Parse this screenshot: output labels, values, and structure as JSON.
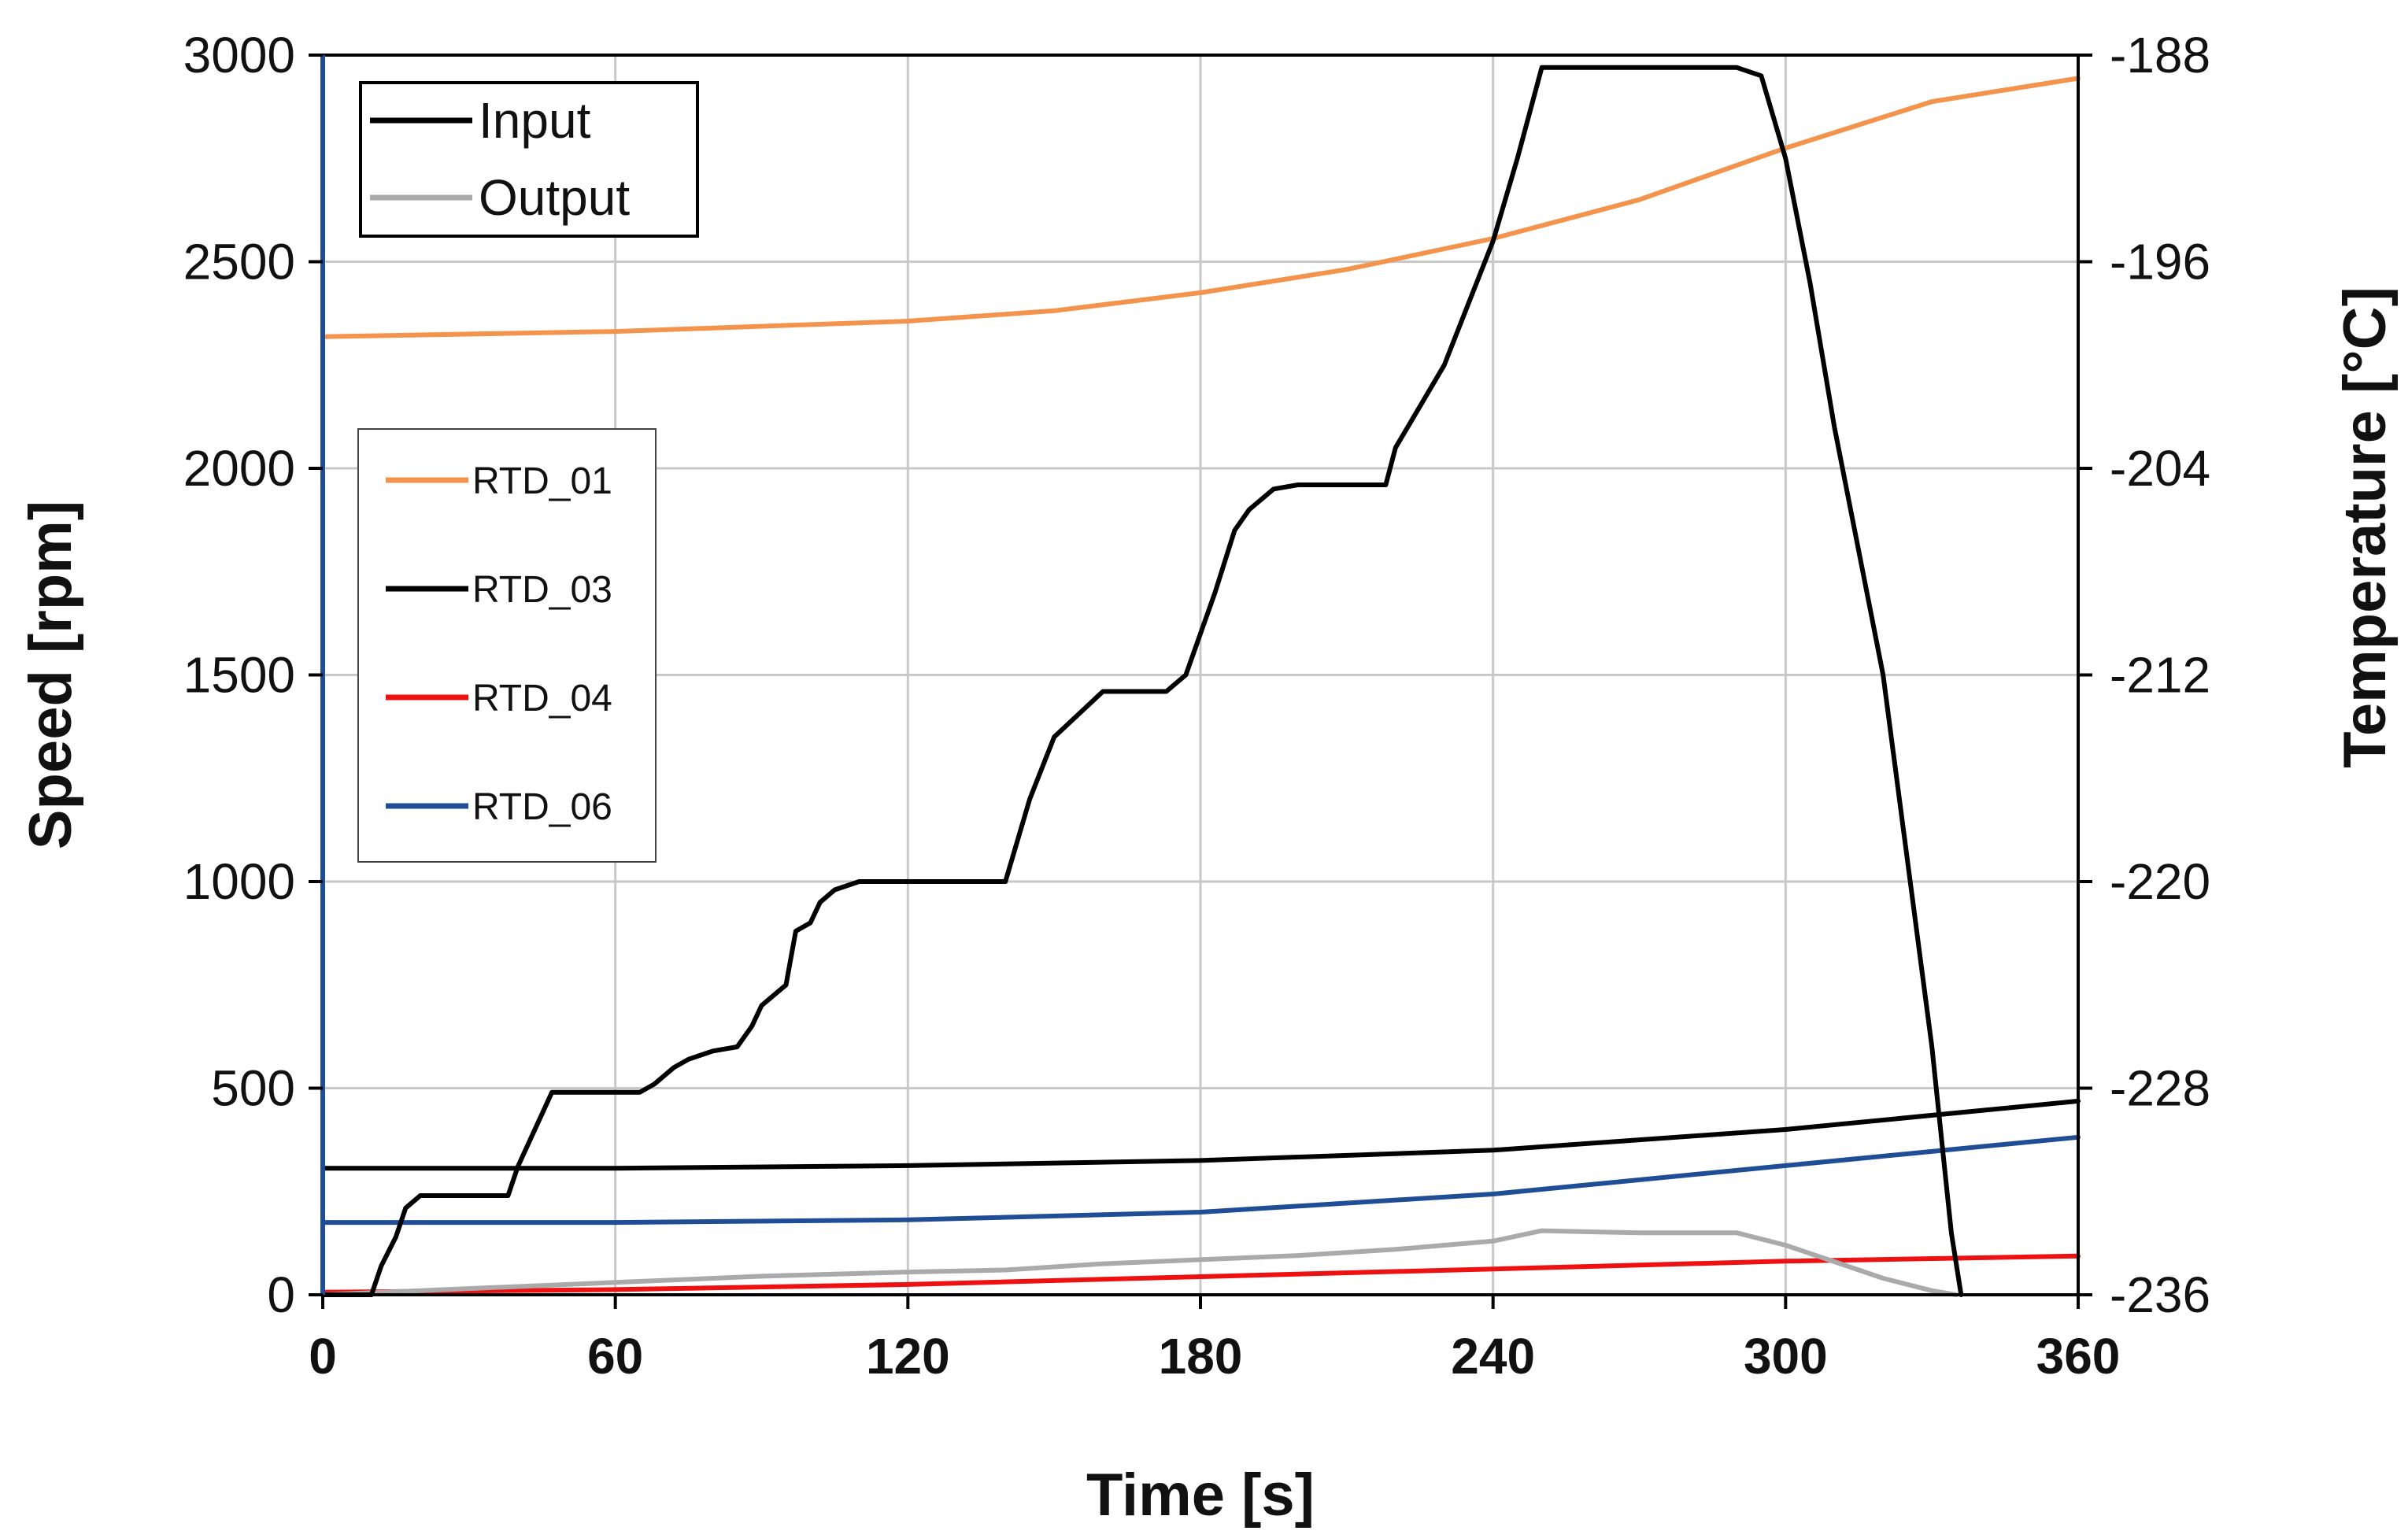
{
  "chart_data": {
    "type": "line",
    "xlabel": "Time [s]",
    "ylabel": "Speed [rpm]",
    "y2label": "Temperature [°C]",
    "xlim": [
      0,
      360
    ],
    "ylim": [
      0,
      3000
    ],
    "y2lim": [
      -236,
      -188
    ],
    "xticks": [
      0,
      60,
      120,
      180,
      240,
      300,
      360
    ],
    "yticks": [
      0,
      500,
      1000,
      1500,
      2000,
      2500,
      3000
    ],
    "y2ticks": [
      -236,
      -228,
      -220,
      -212,
      -204,
      -196,
      -188
    ],
    "grid": true,
    "legends": [
      {
        "placement": "top-left",
        "entries": [
          "Input",
          "Output"
        ]
      },
      {
        "placement": "upper-left",
        "entries": [
          "RTD_01",
          "RTD_03",
          "RTD_04",
          "RTD_06"
        ]
      }
    ],
    "speed_series": [
      {
        "name": "Input",
        "color": "#000000",
        "x": [
          0,
          10,
          12,
          15,
          17,
          20,
          25,
          38,
          40,
          47,
          50,
          65,
          68,
          72,
          75,
          80,
          85,
          88,
          90,
          95,
          97,
          100,
          102,
          105,
          110,
          135,
          140,
          145,
          150,
          160,
          173,
          177,
          183,
          187,
          190,
          195,
          200,
          210,
          218,
          220,
          225,
          230,
          235,
          240,
          245,
          250,
          290,
          295,
          300,
          305,
          310,
          320,
          330,
          334,
          336
        ],
        "values": [
          0,
          0,
          70,
          140,
          210,
          240,
          240,
          240,
          310,
          490,
          490,
          490,
          510,
          550,
          570,
          590,
          600,
          650,
          700,
          750,
          880,
          900,
          950,
          980,
          1000,
          1000,
          1000,
          1200,
          1350,
          1460,
          1460,
          1500,
          1700,
          1850,
          1900,
          1950,
          1960,
          1960,
          1960,
          2050,
          2150,
          2250,
          2400,
          2550,
          2750,
          2970,
          2970,
          2950,
          2750,
          2450,
          2100,
          1500,
          600,
          150,
          0
        ]
      },
      {
        "name": "Output",
        "color": "#aaaaaa",
        "x": [
          0,
          10,
          30,
          60,
          90,
          120,
          140,
          160,
          180,
          200,
          220,
          240,
          250,
          270,
          290,
          300,
          310,
          320,
          330,
          335
        ],
        "values": [
          0,
          5,
          15,
          30,
          45,
          55,
          60,
          75,
          85,
          95,
          110,
          130,
          155,
          150,
          150,
          120,
          80,
          40,
          10,
          0
        ]
      }
    ],
    "temperature_series": [
      {
        "name": "RTD_01",
        "color": "#f4944c",
        "x": [
          0,
          60,
          120,
          150,
          180,
          210,
          240,
          270,
          300,
          330,
          360
        ],
        "values": [
          -198.9,
          -198.7,
          -198.3,
          -197.9,
          -197.2,
          -196.3,
          -195.1,
          -193.6,
          -191.6,
          -189.8,
          -188.9
        ]
      },
      {
        "name": "RTD_03",
        "color": "#000000",
        "x": [
          0,
          60,
          120,
          180,
          240,
          300,
          360
        ],
        "values": [
          -231.1,
          -231.1,
          -231.0,
          -230.8,
          -230.4,
          -229.6,
          -228.5
        ]
      },
      {
        "name": "RTD_04",
        "color": "#ee1111",
        "x": [
          0,
          60,
          120,
          180,
          240,
          300,
          360
        ],
        "values": [
          -235.9,
          -235.8,
          -235.6,
          -235.3,
          -235.0,
          -234.7,
          -234.5
        ]
      },
      {
        "name": "RTD_06",
        "color": "#1f4e96",
        "x": [
          0,
          60,
          120,
          180,
          240,
          300,
          360
        ],
        "values": [
          -233.2,
          -233.2,
          -233.1,
          -232.8,
          -232.1,
          -231.0,
          -229.9
        ]
      }
    ]
  }
}
